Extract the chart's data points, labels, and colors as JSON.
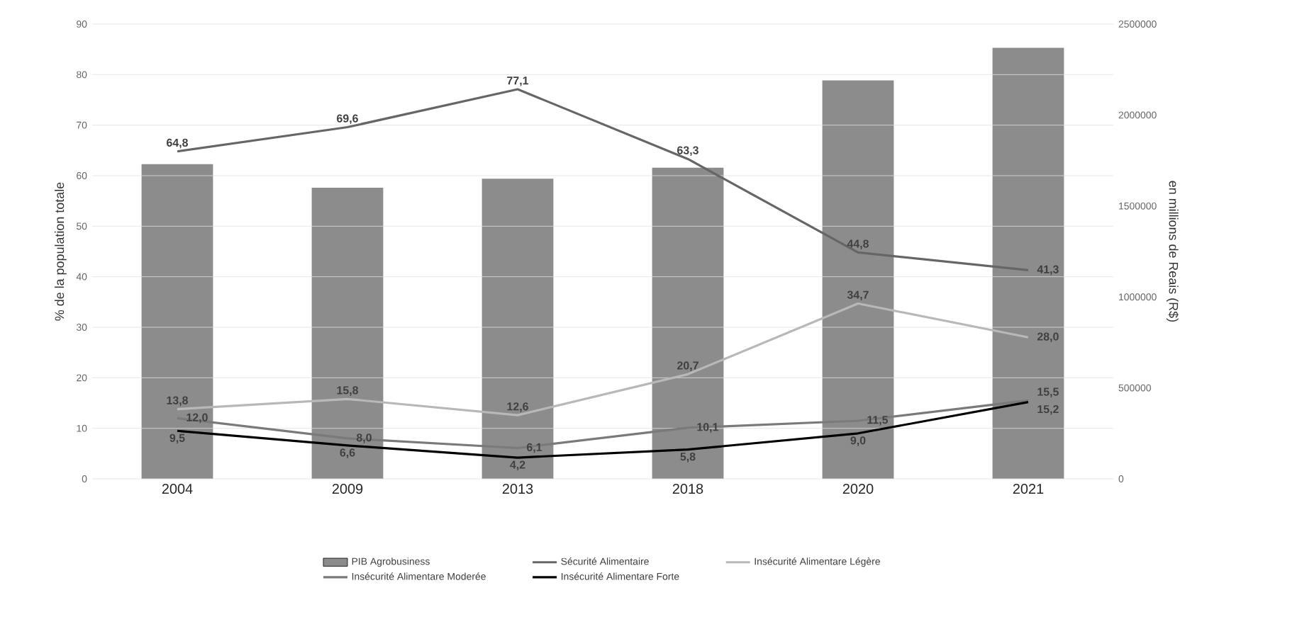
{
  "chart_data": {
    "type": "line",
    "ylabel": "% de la population totale",
    "y2label": "en millions de Reais (R$)",
    "categories": [
      "2004",
      "2009",
      "2013",
      "2018",
      "2020",
      "2021"
    ],
    "series": [
      {
        "name": "PIB Agrobusiness",
        "type": "bar",
        "axis": "y2",
        "color": "#8c8c8c",
        "values": [
          1730000,
          1600000,
          1650000,
          1710000,
          2190000,
          2370000
        ]
      },
      {
        "name": "Sécurité Alimentaire",
        "color": "#666666",
        "values": [
          64.8,
          69.6,
          77.1,
          63.3,
          44.8,
          41.3
        ],
        "value_labels": [
          "64,8",
          "69,6",
          "77,1",
          "63,3",
          "44,8",
          "41,3"
        ]
      },
      {
        "name": "Insécurité Alimentare Légère",
        "color": "#b8b8b8",
        "values": [
          13.8,
          15.8,
          12.6,
          20.7,
          34.7,
          28.0
        ],
        "value_labels": [
          "13,8",
          "15,8",
          "12,6",
          "20,7",
          "34,7",
          "28,0"
        ]
      },
      {
        "name": "Insécurité Alimentare Moderée",
        "color": "#7a7a7a",
        "values": [
          12.0,
          8.0,
          6.1,
          10.1,
          11.5,
          15.5
        ],
        "value_labels": [
          "12,0",
          "8,0",
          "6,1",
          "10,1",
          "11,5",
          "15,5"
        ]
      },
      {
        "name": "Insécurité Alimentare Forte",
        "color": "#000000",
        "values": [
          9.5,
          6.6,
          4.2,
          5.8,
          9.0,
          15.2
        ],
        "value_labels": [
          "9,5",
          "6,6",
          "4,2",
          "5,8",
          "9,0",
          "15,2"
        ]
      }
    ],
    "ylim": [
      0,
      90
    ],
    "yticks": [
      0,
      10,
      20,
      30,
      40,
      50,
      60,
      70,
      80,
      90
    ],
    "y2lim": [
      0,
      2500000
    ],
    "y2ticks": [
      0,
      500000,
      1000000,
      1500000,
      2000000,
      2500000
    ],
    "grid": "y",
    "legend": "bottom"
  }
}
